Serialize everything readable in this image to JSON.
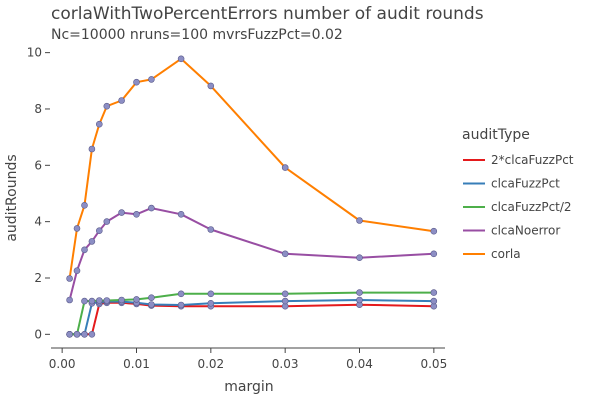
{
  "chart_data": {
    "type": "line",
    "title": "corlaWithTwoPercentErrors number of audit rounds",
    "subtitle": "Nc=10000 nruns=100 mvrsFuzzPct=0.02",
    "xlabel": "margin",
    "ylabel": "auditRounds",
    "xlim": [
      -0.0015,
      0.0515
    ],
    "ylim": [
      -0.45,
      10.2
    ],
    "x_ticks": [
      0,
      0.01,
      0.02,
      0.03,
      0.04,
      0.05
    ],
    "x_tick_labels": [
      "0.00",
      "0.01",
      "0.02",
      "0.03",
      "0.04",
      "0.05"
    ],
    "y_ticks": [
      0,
      2,
      4,
      6,
      8,
      10
    ],
    "y_tick_labels": [
      "0",
      "2",
      "4",
      "6",
      "8",
      "10"
    ],
    "grid": false,
    "legend": {
      "title": "auditType",
      "placement": "right"
    },
    "marker_color": "#8c8ec4",
    "series": [
      {
        "name": "2*clcaFuzzPct",
        "color": "#e41a1c",
        "x": [
          0.001,
          0.002,
          0.003,
          0.004,
          0.005,
          0.006,
          0.008,
          0.01,
          0.012,
          0.016,
          0.02,
          0.03,
          0.04,
          0.05
        ],
        "y": [
          0.0,
          0.0,
          0.0,
          0.0,
          1.08,
          1.12,
          1.12,
          1.08,
          1.02,
          1.0,
          1.0,
          1.0,
          1.05,
          1.0
        ]
      },
      {
        "name": "clcaFuzzPct",
        "color": "#377eb8",
        "x": [
          0.001,
          0.002,
          0.003,
          0.004,
          0.005,
          0.006,
          0.008,
          0.01,
          0.012,
          0.016,
          0.02,
          0.03,
          0.04,
          0.05
        ],
        "y": [
          0.0,
          0.0,
          0.0,
          1.1,
          1.14,
          1.16,
          1.16,
          1.12,
          1.06,
          1.04,
          1.1,
          1.18,
          1.22,
          1.18
        ]
      },
      {
        "name": "clcaFuzzPct/2",
        "color": "#4daf4a",
        "x": [
          0.001,
          0.002,
          0.003,
          0.004,
          0.005,
          0.006,
          0.008,
          0.01,
          0.012,
          0.016,
          0.02,
          0.03,
          0.04,
          0.05
        ],
        "y": [
          0.0,
          0.0,
          1.18,
          1.18,
          1.2,
          1.2,
          1.22,
          1.24,
          1.3,
          1.44,
          1.44,
          1.44,
          1.48,
          1.48
        ]
      },
      {
        "name": "clcaNoerror",
        "color": "#984ea3",
        "x": [
          0.001,
          0.002,
          0.003,
          0.004,
          0.005,
          0.006,
          0.008,
          0.01,
          0.012,
          0.016,
          0.02,
          0.03,
          0.04,
          0.05
        ],
        "y": [
          1.22,
          2.26,
          3.0,
          3.3,
          3.68,
          4.0,
          4.32,
          4.26,
          4.48,
          4.26,
          3.72,
          2.86,
          2.72,
          2.86
        ]
      },
      {
        "name": "corla",
        "color": "#ff7f00",
        "x": [
          0.001,
          0.002,
          0.003,
          0.004,
          0.005,
          0.006,
          0.008,
          0.01,
          0.012,
          0.016,
          0.02,
          0.03,
          0.04,
          0.05
        ],
        "y": [
          1.98,
          3.76,
          4.58,
          6.58,
          7.46,
          8.1,
          8.3,
          8.95,
          9.05,
          9.78,
          8.82,
          5.92,
          4.04,
          3.66
        ]
      }
    ]
  }
}
